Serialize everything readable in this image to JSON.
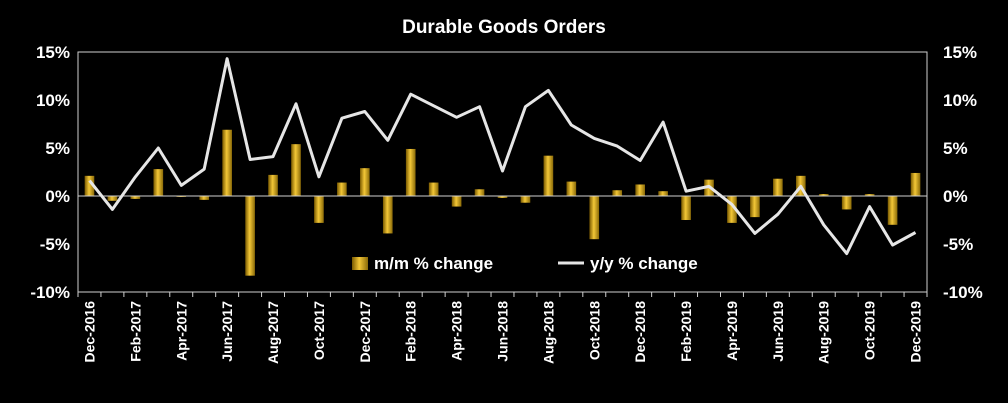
{
  "chart_data": {
    "type": "bar",
    "title": "Durable Goods Orders",
    "xlabel": "",
    "ylabel": "",
    "ylim": [
      -10,
      15
    ],
    "y_ticks": [
      "15%",
      "10%",
      "5%",
      "0%",
      "-5%",
      "-10%"
    ],
    "y_tick_values": [
      15,
      10,
      5,
      0,
      -5,
      -10
    ],
    "x_tick_labels": [
      "Dec-2016",
      "Feb-2017",
      "Apr-2017",
      "Jun-2017",
      "Aug-2017",
      "Oct-2017",
      "Dec-2017",
      "Feb-2018",
      "Apr-2018",
      "Jun-2018",
      "Aug-2018",
      "Oct-2018",
      "Dec-2018",
      "Feb-2019",
      "Apr-2019",
      "Jun-2019",
      "Aug-2019",
      "Oct-2019",
      "Dec-2019"
    ],
    "categories": [
      "Dec-2016",
      "Jan-2017",
      "Feb-2017",
      "Mar-2017",
      "Apr-2017",
      "May-2017",
      "Jun-2017",
      "Jul-2017",
      "Aug-2017",
      "Sep-2017",
      "Oct-2017",
      "Nov-2017",
      "Dec-2017",
      "Jan-2018",
      "Feb-2018",
      "Mar-2018",
      "Apr-2018",
      "May-2018",
      "Jun-2018",
      "Jul-2018",
      "Aug-2018",
      "Sep-2018",
      "Oct-2018",
      "Nov-2018",
      "Dec-2018",
      "Jan-2019",
      "Feb-2019",
      "Mar-2019",
      "Apr-2019",
      "May-2019",
      "Jun-2019",
      "Jul-2019",
      "Aug-2019",
      "Sep-2019",
      "Oct-2019",
      "Nov-2019",
      "Dec-2019"
    ],
    "series": [
      {
        "name": "m/m % change",
        "kind": "bar",
        "color": "#d4a017",
        "values": [
          2.1,
          -0.5,
          -0.3,
          2.8,
          -0.1,
          -0.4,
          6.9,
          -8.3,
          2.2,
          5.4,
          -2.8,
          1.4,
          2.9,
          -3.9,
          4.9,
          1.4,
          -1.1,
          0.7,
          -0.2,
          -0.7,
          4.2,
          1.5,
          -4.5,
          0.6,
          1.2,
          0.5,
          -2.5,
          1.7,
          -2.8,
          -2.2,
          1.8,
          2.1,
          0.2,
          -1.4,
          0.2,
          -3.0,
          2.4
        ]
      },
      {
        "name": "y/y % change",
        "kind": "line",
        "color": "#e6e6e6",
        "values": [
          1.6,
          -1.4,
          2.0,
          5.0,
          1.1,
          2.8,
          14.3,
          3.8,
          4.1,
          9.6,
          2.0,
          8.1,
          8.8,
          5.8,
          10.6,
          9.4,
          8.2,
          9.3,
          2.6,
          9.3,
          11.0,
          7.4,
          6.0,
          5.2,
          3.7,
          7.7,
          0.5,
          1.0,
          -0.9,
          -3.9,
          -1.9,
          1.0,
          -3.0,
          -6.0,
          -1.1,
          -5.1,
          -3.8
        ]
      }
    ],
    "legend": {
      "position": "bottom-center"
    }
  }
}
